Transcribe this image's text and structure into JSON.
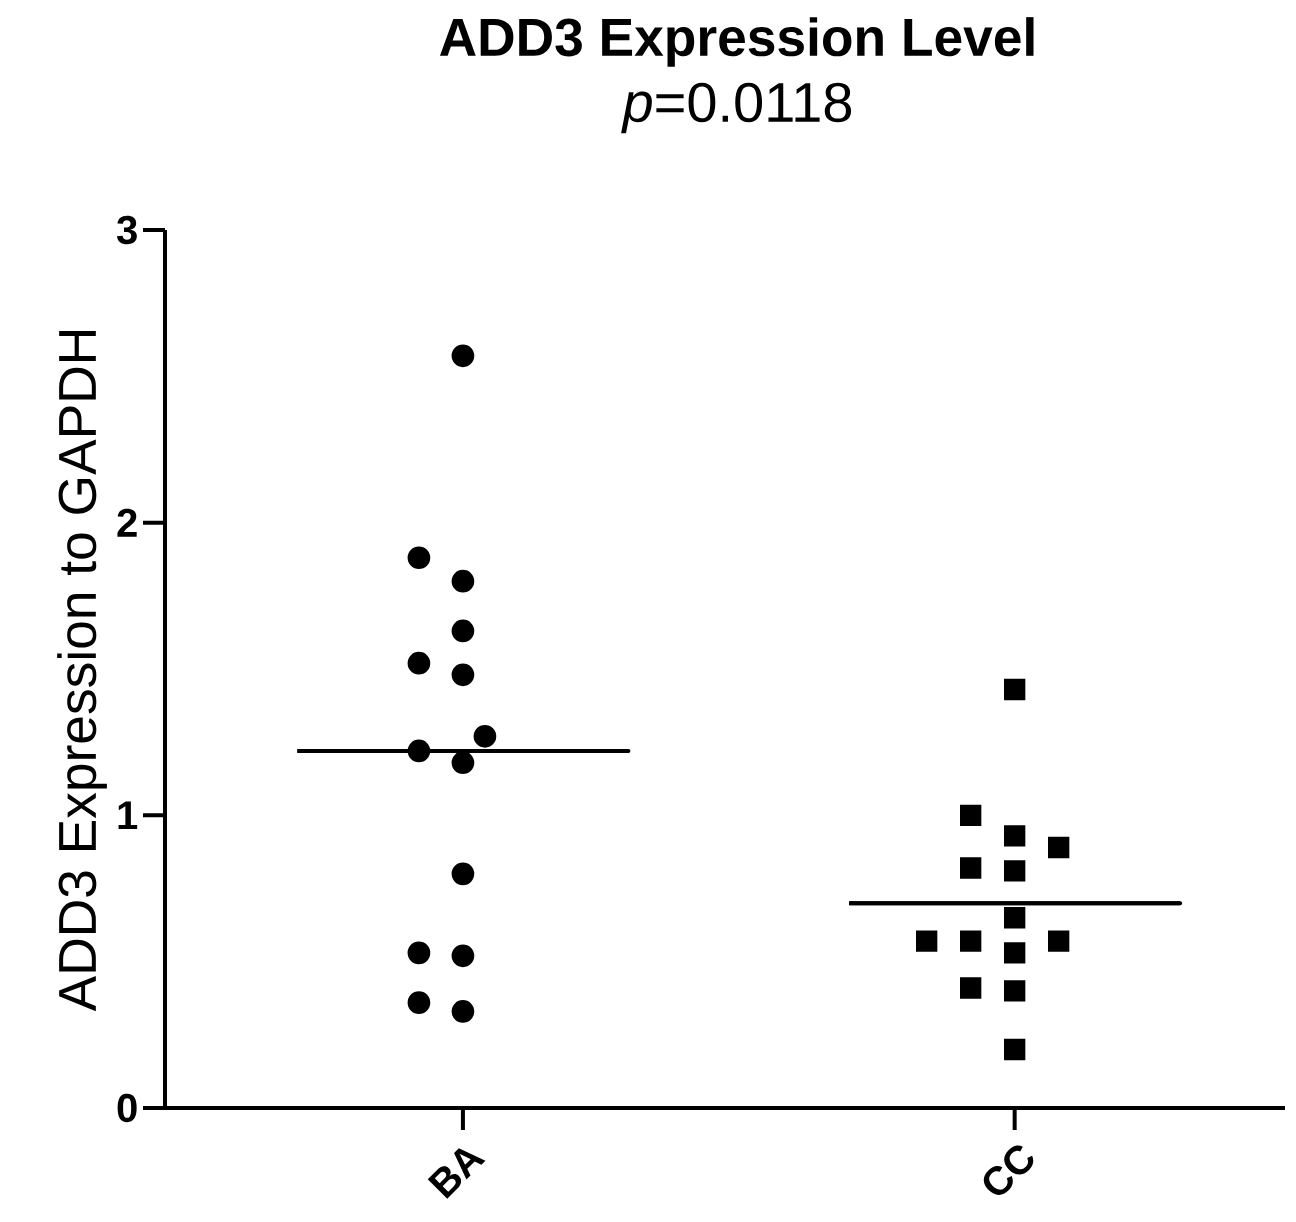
{
  "chart_data": {
    "type": "scatter",
    "title": "ADD3 Expression Level",
    "subtitle": "*p*=0.0118",
    "ylabel": "ADD3 Expression to GAPDH",
    "categories": [
      "BA",
      "CC"
    ],
    "ylim": [
      0,
      3
    ],
    "yticks": [
      0,
      1,
      2,
      3
    ],
    "grid": false,
    "series": [
      {
        "marker": "circle",
        "color": "#000000",
        "x": [
          "BA",
          "BA",
          "BA",
          "BA",
          "BA",
          "BA",
          "BA",
          "BA",
          "BA",
          "BA",
          "BA",
          "BA",
          "BA",
          "BA"
        ],
        "values": [
          2.57,
          1.88,
          1.8,
          1.63,
          1.52,
          1.48,
          1.27,
          1.22,
          1.18,
          0.8,
          0.53,
          0.52,
          0.33,
          0.36
        ]
      },
      {
        "marker": "square",
        "color": "#000000",
        "x": [
          "CC",
          "CC",
          "CC",
          "CC",
          "CC",
          "CC",
          "CC",
          "CC",
          "CC",
          "CC",
          "CC",
          "CC",
          "CC",
          "CC"
        ],
        "values": [
          1.43,
          1.0,
          0.93,
          0.89,
          0.82,
          0.81,
          0.65,
          0.57,
          0.57,
          0.57,
          0.53,
          0.41,
          0.4,
          0.2
        ]
      },
      {
        "type": "box",
        "color": "#000000",
        "boxes": [
          {
            "low": 1.22,
            "q1": 1.22,
            "median": 1.22,
            "q3": 1.22,
            "high": 1.22
          },
          {
            "low": 0.7,
            "q1": 0.7,
            "median": 0.7,
            "q3": 0.7,
            "high": 0.7
          }
        ]
      }
    ]
  }
}
